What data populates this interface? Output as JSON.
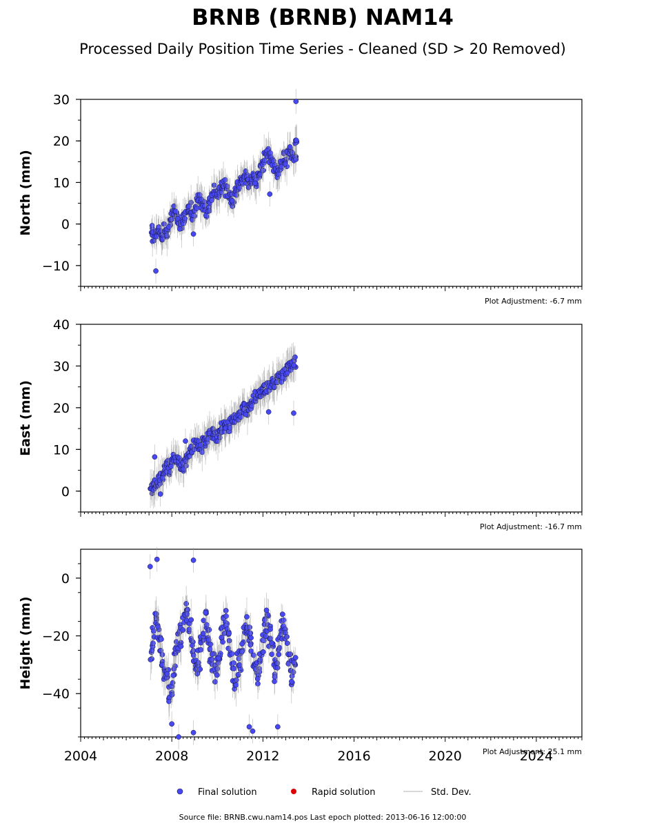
{
  "title": "BRNB (BRNB) NAM14",
  "subtitle": "Processed Daily Position Time Series - Cleaned (SD > 20 Removed)",
  "legend": {
    "placement": "bottom-center",
    "items": [
      {
        "label": "Final solution",
        "color": "#4848f0",
        "kind": "marker"
      },
      {
        "label": "Rapid solution",
        "color": "#dd0000",
        "kind": "marker"
      },
      {
        "label": "Std. Dev.",
        "color": "#cccccc",
        "kind": "line"
      }
    ]
  },
  "footer": "Source file: BRNB.cwu.nam14.pos  Last epoch plotted: 2013-06-16 12:00:00",
  "colors": {
    "final": "#4848f0",
    "rapid": "#dd0000",
    "stddev": "#999999",
    "axis": "#000000"
  },
  "chart_data": [
    {
      "type": "scatter",
      "panel": "north",
      "ylabel": "North (mm)",
      "xlim": [
        2004,
        2026
      ],
      "ylim": [
        -15,
        30
      ],
      "yticks": [
        -10,
        0,
        10,
        20,
        30
      ],
      "xticks": [
        2004,
        2008,
        2012,
        2016,
        2020,
        2024
      ],
      "xtick_labels_shown": false,
      "adjustment": "Plot Adjustment: -6.7 mm",
      "series": [
        {
          "style": "final",
          "x": [
            2007.1,
            2007.2,
            2007.3,
            2007.4,
            2007.5,
            2007.6,
            2007.7,
            2007.8,
            2007.9,
            2008.0,
            2008.1,
            2008.2,
            2008.3,
            2008.4,
            2008.5,
            2008.6,
            2008.7,
            2008.8,
            2008.9,
            2009.0,
            2009.1,
            2009.2,
            2009.3,
            2009.4,
            2009.5,
            2009.6,
            2009.7,
            2009.8,
            2009.9,
            2010.0,
            2010.1,
            2010.2,
            2010.3,
            2010.4,
            2010.5,
            2010.6,
            2010.7,
            2010.8,
            2010.9,
            2011.0,
            2011.1,
            2011.2,
            2011.3,
            2011.4,
            2011.5,
            2011.6,
            2011.7,
            2011.8,
            2011.9,
            2012.0,
            2012.1,
            2012.2,
            2012.3,
            2012.4,
            2012.5,
            2012.6,
            2012.7,
            2012.8,
            2012.9,
            2013.0,
            2013.1,
            2013.2,
            2013.3,
            2013.4,
            2013.45
          ],
          "y": [
            -1.5,
            -3,
            -2.5,
            -1,
            -2,
            -3,
            -1,
            -2,
            0,
            2,
            3,
            2,
            1,
            0,
            1,
            2,
            3,
            4,
            2,
            3,
            5,
            6,
            5,
            4,
            3,
            4,
            6,
            7,
            8,
            7,
            8,
            9,
            10,
            8,
            7,
            6,
            5,
            8,
            9,
            10,
            11,
            12,
            11,
            10,
            11,
            12,
            10,
            11,
            13,
            14,
            16,
            17,
            16,
            15,
            14,
            12,
            13,
            14,
            16,
            15,
            17,
            18,
            17,
            16,
            19
          ],
          "outliers": {
            "x": [
              2007.3,
              2008.95,
              2012.3,
              2013.45
            ],
            "y": [
              -11.3,
              -2.4,
              7.2,
              29.5
            ]
          }
        }
      ]
    },
    {
      "type": "scatter",
      "panel": "east",
      "ylabel": "East (mm)",
      "xlim": [
        2004,
        2026
      ],
      "ylim": [
        -5,
        40
      ],
      "yticks": [
        0,
        10,
        20,
        30,
        40
      ],
      "xticks": [
        2004,
        2008,
        2012,
        2016,
        2020,
        2024
      ],
      "xtick_labels_shown": false,
      "adjustment": "Plot Adjustment: -16.7 mm",
      "series": [
        {
          "style": "final",
          "x": [
            2007.1,
            2007.2,
            2007.3,
            2007.4,
            2007.5,
            2007.6,
            2007.7,
            2007.8,
            2007.9,
            2008.0,
            2008.1,
            2008.2,
            2008.3,
            2008.4,
            2008.5,
            2008.6,
            2008.7,
            2008.8,
            2008.9,
            2009.0,
            2009.1,
            2009.2,
            2009.3,
            2009.4,
            2009.5,
            2009.6,
            2009.7,
            2009.8,
            2009.9,
            2010.0,
            2010.1,
            2010.2,
            2010.3,
            2010.4,
            2010.5,
            2010.6,
            2010.7,
            2010.8,
            2010.9,
            2011.0,
            2011.1,
            2011.2,
            2011.3,
            2011.4,
            2011.5,
            2011.6,
            2011.7,
            2011.8,
            2011.9,
            2012.0,
            2012.1,
            2012.2,
            2012.3,
            2012.4,
            2012.5,
            2012.6,
            2012.7,
            2012.8,
            2012.9,
            2013.0,
            2013.1,
            2013.2,
            2013.3,
            2013.4
          ],
          "y": [
            0.5,
            1.5,
            2,
            2.5,
            3,
            4,
            5,
            6,
            5,
            7,
            8,
            7.5,
            7,
            6.5,
            6,
            7,
            8,
            9,
            10,
            11,
            11.5,
            11,
            10.5,
            11.5,
            12,
            13,
            13.5,
            14,
            13.5,
            13,
            14,
            15,
            15.5,
            16,
            15.5,
            16.5,
            17,
            17.5,
            18,
            19,
            19.5,
            20,
            19.5,
            20.5,
            21,
            22,
            22.5,
            23,
            23.5,
            24,
            24.5,
            25,
            25.5,
            26,
            25.5,
            26.5,
            27,
            27.5,
            28,
            29,
            29.5,
            30,
            30.5,
            31
          ],
          "outliers": {
            "x": [
              2007.25,
              2007.5,
              2008.6,
              2012.25,
              2013.35
            ],
            "y": [
              8.2,
              -0.7,
              12,
              19,
              18.7
            ]
          }
        }
      ]
    },
    {
      "type": "scatter",
      "panel": "height",
      "ylabel": "Height (mm)",
      "xlim": [
        2004,
        2026
      ],
      "ylim": [
        -55,
        10
      ],
      "yticks": [
        -40,
        -20,
        0
      ],
      "xticks": [
        2004,
        2008,
        2012,
        2016,
        2020,
        2024
      ],
      "xtick_labels": [
        "2004",
        "2008",
        "2012",
        "2016",
        "2020",
        "2024"
      ],
      "xtick_labels_shown": true,
      "adjustment": "Plot Adjustment: 25.1 mm",
      "series": [
        {
          "style": "final",
          "x": [
            2007.1,
            2007.2,
            2007.3,
            2007.4,
            2007.5,
            2007.6,
            2007.7,
            2007.8,
            2007.9,
            2008.0,
            2008.1,
            2008.2,
            2008.3,
            2008.4,
            2008.5,
            2008.6,
            2008.7,
            2008.8,
            2008.9,
            2009.0,
            2009.1,
            2009.2,
            2009.3,
            2009.4,
            2009.5,
            2009.6,
            2009.7,
            2009.8,
            2009.9,
            2010.0,
            2010.1,
            2010.2,
            2010.3,
            2010.4,
            2010.5,
            2010.6,
            2010.7,
            2010.8,
            2010.9,
            2011.0,
            2011.1,
            2011.2,
            2011.3,
            2011.4,
            2011.5,
            2011.6,
            2011.7,
            2011.8,
            2011.9,
            2012.0,
            2012.1,
            2012.2,
            2012.3,
            2012.4,
            2012.5,
            2012.6,
            2012.7,
            2012.8,
            2012.9,
            2013.0,
            2013.1,
            2013.2,
            2013.3,
            2013.4
          ],
          "y": [
            -25,
            -20,
            -15,
            -18,
            -22,
            -28,
            -32,
            -35,
            -40,
            -38,
            -30,
            -25,
            -22,
            -20,
            -15,
            -12,
            -14,
            -18,
            -25,
            -30,
            -32,
            -28,
            -22,
            -18,
            -15,
            -20,
            -26,
            -30,
            -33,
            -30,
            -25,
            -20,
            -16,
            -15,
            -22,
            -28,
            -33,
            -35,
            -30,
            -28,
            -24,
            -20,
            -16,
            -18,
            -22,
            -28,
            -32,
            -34,
            -28,
            -22,
            -18,
            -15,
            -20,
            -26,
            -32,
            -30,
            -24,
            -18,
            -15,
            -20,
            -26,
            -30,
            -34,
            -28
          ],
          "outliers": {
            "x": [
              2007.05,
              2007.35,
              2008.0,
              2008.95,
              2008.95,
              2008.3,
              2011.4,
              2011.55,
              2012.65
            ],
            "y": [
              4,
              6.5,
              -50.5,
              6.2,
              -53.5,
              -55,
              -51.5,
              -53,
              -51.5
            ]
          }
        }
      ]
    }
  ]
}
